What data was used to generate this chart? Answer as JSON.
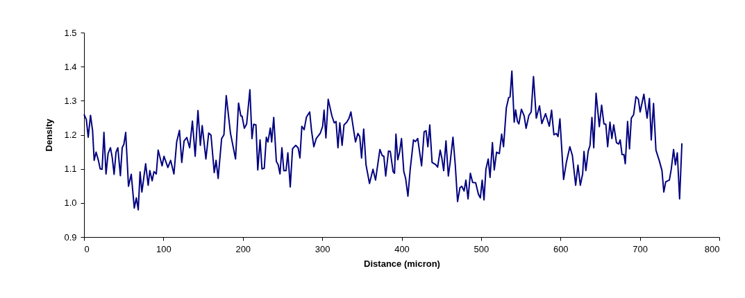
{
  "chart_data": {
    "type": "line",
    "xlabel": "Distance (micron)",
    "ylabel": "Density",
    "xlim": [
      0,
      800
    ],
    "xticks": [
      0,
      100,
      200,
      300,
      400,
      500,
      600,
      700,
      800
    ],
    "ylim": [
      0.9,
      1.5
    ],
    "yticks": [
      {
        "value": 0.9,
        "label": "0.9"
      },
      {
        "value": 1.0,
        "label": "1.0"
      },
      {
        "value": 1.1,
        "label": "1.1"
      },
      {
        "value": 1.2,
        "label": "1.2"
      },
      {
        "value": 1.3,
        "label": "1.3"
      },
      {
        "value": 1.4,
        "label": "1.4"
      },
      {
        "value": 1.5,
        "label": "1.5"
      }
    ],
    "grid": false,
    "line_style": "solid",
    "series": [
      {
        "color": "#000080",
        "x": [
          0,
          2.9,
          5.3,
          8.2,
          10.8,
          12.8,
          15.2,
          18.1,
          20.4,
          22.8,
          25.1,
          27.7,
          30.3,
          33.3,
          35.6,
          37.9,
          40.3,
          42.6,
          45.8,
          48.1,
          50.2,
          52.5,
          56,
          59.5,
          63.3,
          65.9,
          68.3,
          70.6,
          72.9,
          77.6,
          80.8,
          82.9,
          85.8,
          88.1,
          91,
          93.4,
          98.3,
          100.7,
          105.6,
          109.1,
          113.2,
          116.7,
          120.2,
          123.1,
          126,
          129.5,
          133,
          136.5,
          140,
          143.5,
          146.5,
          148.8,
          153.5,
          157,
          159.9,
          164,
          166.3,
          168.9,
          173.3,
          176.2,
          179.1,
          184.4,
          190.8,
          194.6,
          197.5,
          199,
          201.9,
          204.8,
          208.9,
          211.5,
          213.6,
          216.5,
          218.8,
          221.7,
          224.1,
          227,
          229.6,
          231.6,
          234.6,
          236.3,
          238.9,
          242.2,
          244.5,
          246.8,
          249.2,
          251.6,
          254.4,
          256.7,
          259.7,
          262.6,
          266.6,
          269.6,
          271.9,
          274.3,
          277.2,
          280.1,
          284.2,
          286.5,
          289.4,
          292.4,
          297.6,
          300.5,
          302.3,
          304.6,
          307.5,
          312.2,
          315.1,
          317.4,
          319.8,
          322.1,
          325,
          327.4,
          330.9,
          333.8,
          336.1,
          339,
          341.9,
          344.9,
          347.2,
          349.5,
          352.2,
          355.1,
          359.5,
          363.9,
          367.1,
          372.6,
          375.5,
          377.6,
          379.9,
          383.4,
          385.7,
          389.2,
          391,
          392.8,
          395.1,
          397.4,
          399.8,
          402.7,
          405,
          407.9,
          410.8,
          414.9,
          417.3,
          420.2,
          425.1,
          428.3,
          430.7,
          433,
          435.4,
          438.3,
          442.7,
          445.3,
          448.5,
          450.6,
          452.9,
          455.8,
          458.8,
          461.1,
          464.6,
          467.5,
          470.4,
          473.4,
          475.7,
          478.6,
          480.9,
          483.6,
          486.5,
          489.4,
          493.2,
          496.7,
          499.1,
          501.4,
          503.7,
          506.1,
          509,
          511.3,
          514.3,
          516.6,
          519.5,
          523,
          525.9,
          528.3,
          531.8,
          534.7,
          536.5,
          538.8,
          541.7,
          543.5,
          545.8,
          547.6,
          550.8,
          554.3,
          556.7,
          560.2,
          563.1,
          566,
          569.5,
          573.6,
          576.5,
          581.2,
          585.9,
          588.8,
          591.7,
          594.6,
          596.9,
          599.3,
          603.9,
          607.4,
          611.8,
          615,
          619.1,
          622,
          625,
          627.9,
          629.6,
          632,
          634.9,
          637.2,
          639.6,
          641.9,
          644.8,
          648.9,
          651.8,
          654.7,
          657.1,
          659.4,
          662.3,
          664.7,
          667,
          670.5,
          673.4,
          675.2,
          677.5,
          679.9,
          681.6,
          684.5,
          686.9,
          689.2,
          692.1,
          695.1,
          698,
          700.3,
          705,
          709.1,
          712,
          714.3,
          717.2,
          720.2,
          724.3,
          727.8,
          730.1,
          732.5,
          737.1,
          739.5,
          742.4,
          744.7,
          747.1,
          750,
          752.9
        ],
        "values": [
          1.26,
          1.245,
          1.193,
          1.257,
          1.212,
          1.125,
          1.149,
          1.125,
          1.1,
          1.099,
          1.207,
          1.085,
          1.145,
          1.162,
          1.132,
          1.084,
          1.149,
          1.162,
          1.08,
          1.162,
          1.172,
          1.207,
          1.049,
          1.084,
          0.985,
          1.015,
          0.98,
          1.091,
          1.032,
          1.115,
          1.052,
          1.095,
          1.065,
          1.092,
          1.085,
          1.155,
          1.109,
          1.137,
          1.104,
          1.125,
          1.085,
          1.179,
          1.213,
          1.119,
          1.182,
          1.192,
          1.162,
          1.24,
          1.137,
          1.271,
          1.169,
          1.227,
          1.129,
          1.205,
          1.199,
          1.089,
          1.125,
          1.072,
          1.189,
          1.2,
          1.315,
          1.205,
          1.129,
          1.293,
          1.255,
          1.255,
          1.219,
          1.232,
          1.332,
          1.189,
          1.231,
          1.229,
          1.097,
          1.185,
          1.1,
          1.102,
          1.193,
          1.179,
          1.22,
          1.179,
          1.251,
          1.122,
          1.112,
          1.085,
          1.162,
          1.095,
          1.095,
          1.147,
          1.047,
          1.159,
          1.169,
          1.162,
          1.132,
          1.225,
          1.215,
          1.252,
          1.267,
          1.212,
          1.165,
          1.189,
          1.205,
          1.225,
          1.272,
          1.191,
          1.304,
          1.255,
          1.235,
          1.239,
          1.162,
          1.235,
          1.169,
          1.229,
          1.237,
          1.249,
          1.267,
          1.222,
          1.179,
          1.204,
          1.195,
          1.132,
          1.217,
          1.112,
          1.057,
          1.099,
          1.067,
          1.157,
          1.139,
          1.137,
          1.079,
          1.152,
          1.151,
          1.092,
          1.087,
          1.202,
          1.127,
          1.149,
          1.189,
          1.092,
          1.072,
          1.02,
          1.099,
          1.185,
          1.18,
          1.189,
          1.109,
          1.209,
          1.212,
          1.165,
          1.229,
          1.119,
          1.113,
          1.105,
          1.155,
          1.132,
          1.095,
          1.182,
          1.079,
          1.119,
          1.193,
          1.112,
          1.004,
          1.045,
          1.049,
          1.035,
          1.067,
          1.012,
          1.087,
          1.06,
          1.059,
          1.025,
          1.015,
          1.067,
          1.009,
          1.099,
          1.129,
          1.075,
          1.177,
          1.097,
          1.149,
          1.145,
          1.202,
          1.165,
          1.279,
          1.309,
          1.311,
          1.387,
          1.237,
          1.273,
          1.239,
          1.232,
          1.275,
          1.255,
          1.219,
          1.257,
          1.267,
          1.371,
          1.249,
          1.285,
          1.233,
          1.262,
          1.225,
          1.272,
          1.2,
          1.204,
          1.195,
          1.247,
          1.069,
          1.119,
          1.165,
          1.139,
          1.052,
          1.111,
          1.052,
          1.085,
          1.151,
          1.095,
          1.152,
          1.169,
          1.251,
          1.162,
          1.322,
          1.224,
          1.287,
          1.232,
          1.231,
          1.165,
          1.237,
          1.189,
          1.229,
          1.177,
          1.173,
          1.185,
          1.142,
          1.142,
          1.115,
          1.239,
          1.159,
          1.249,
          1.259,
          1.312,
          1.305,
          1.267,
          1.319,
          1.249,
          1.307,
          1.185,
          1.292,
          1.155,
          1.125,
          1.095,
          1.032,
          1.062,
          1.067,
          1.099,
          1.157,
          1.112,
          1.147,
          1.012,
          1.175
        ]
      }
    ]
  }
}
